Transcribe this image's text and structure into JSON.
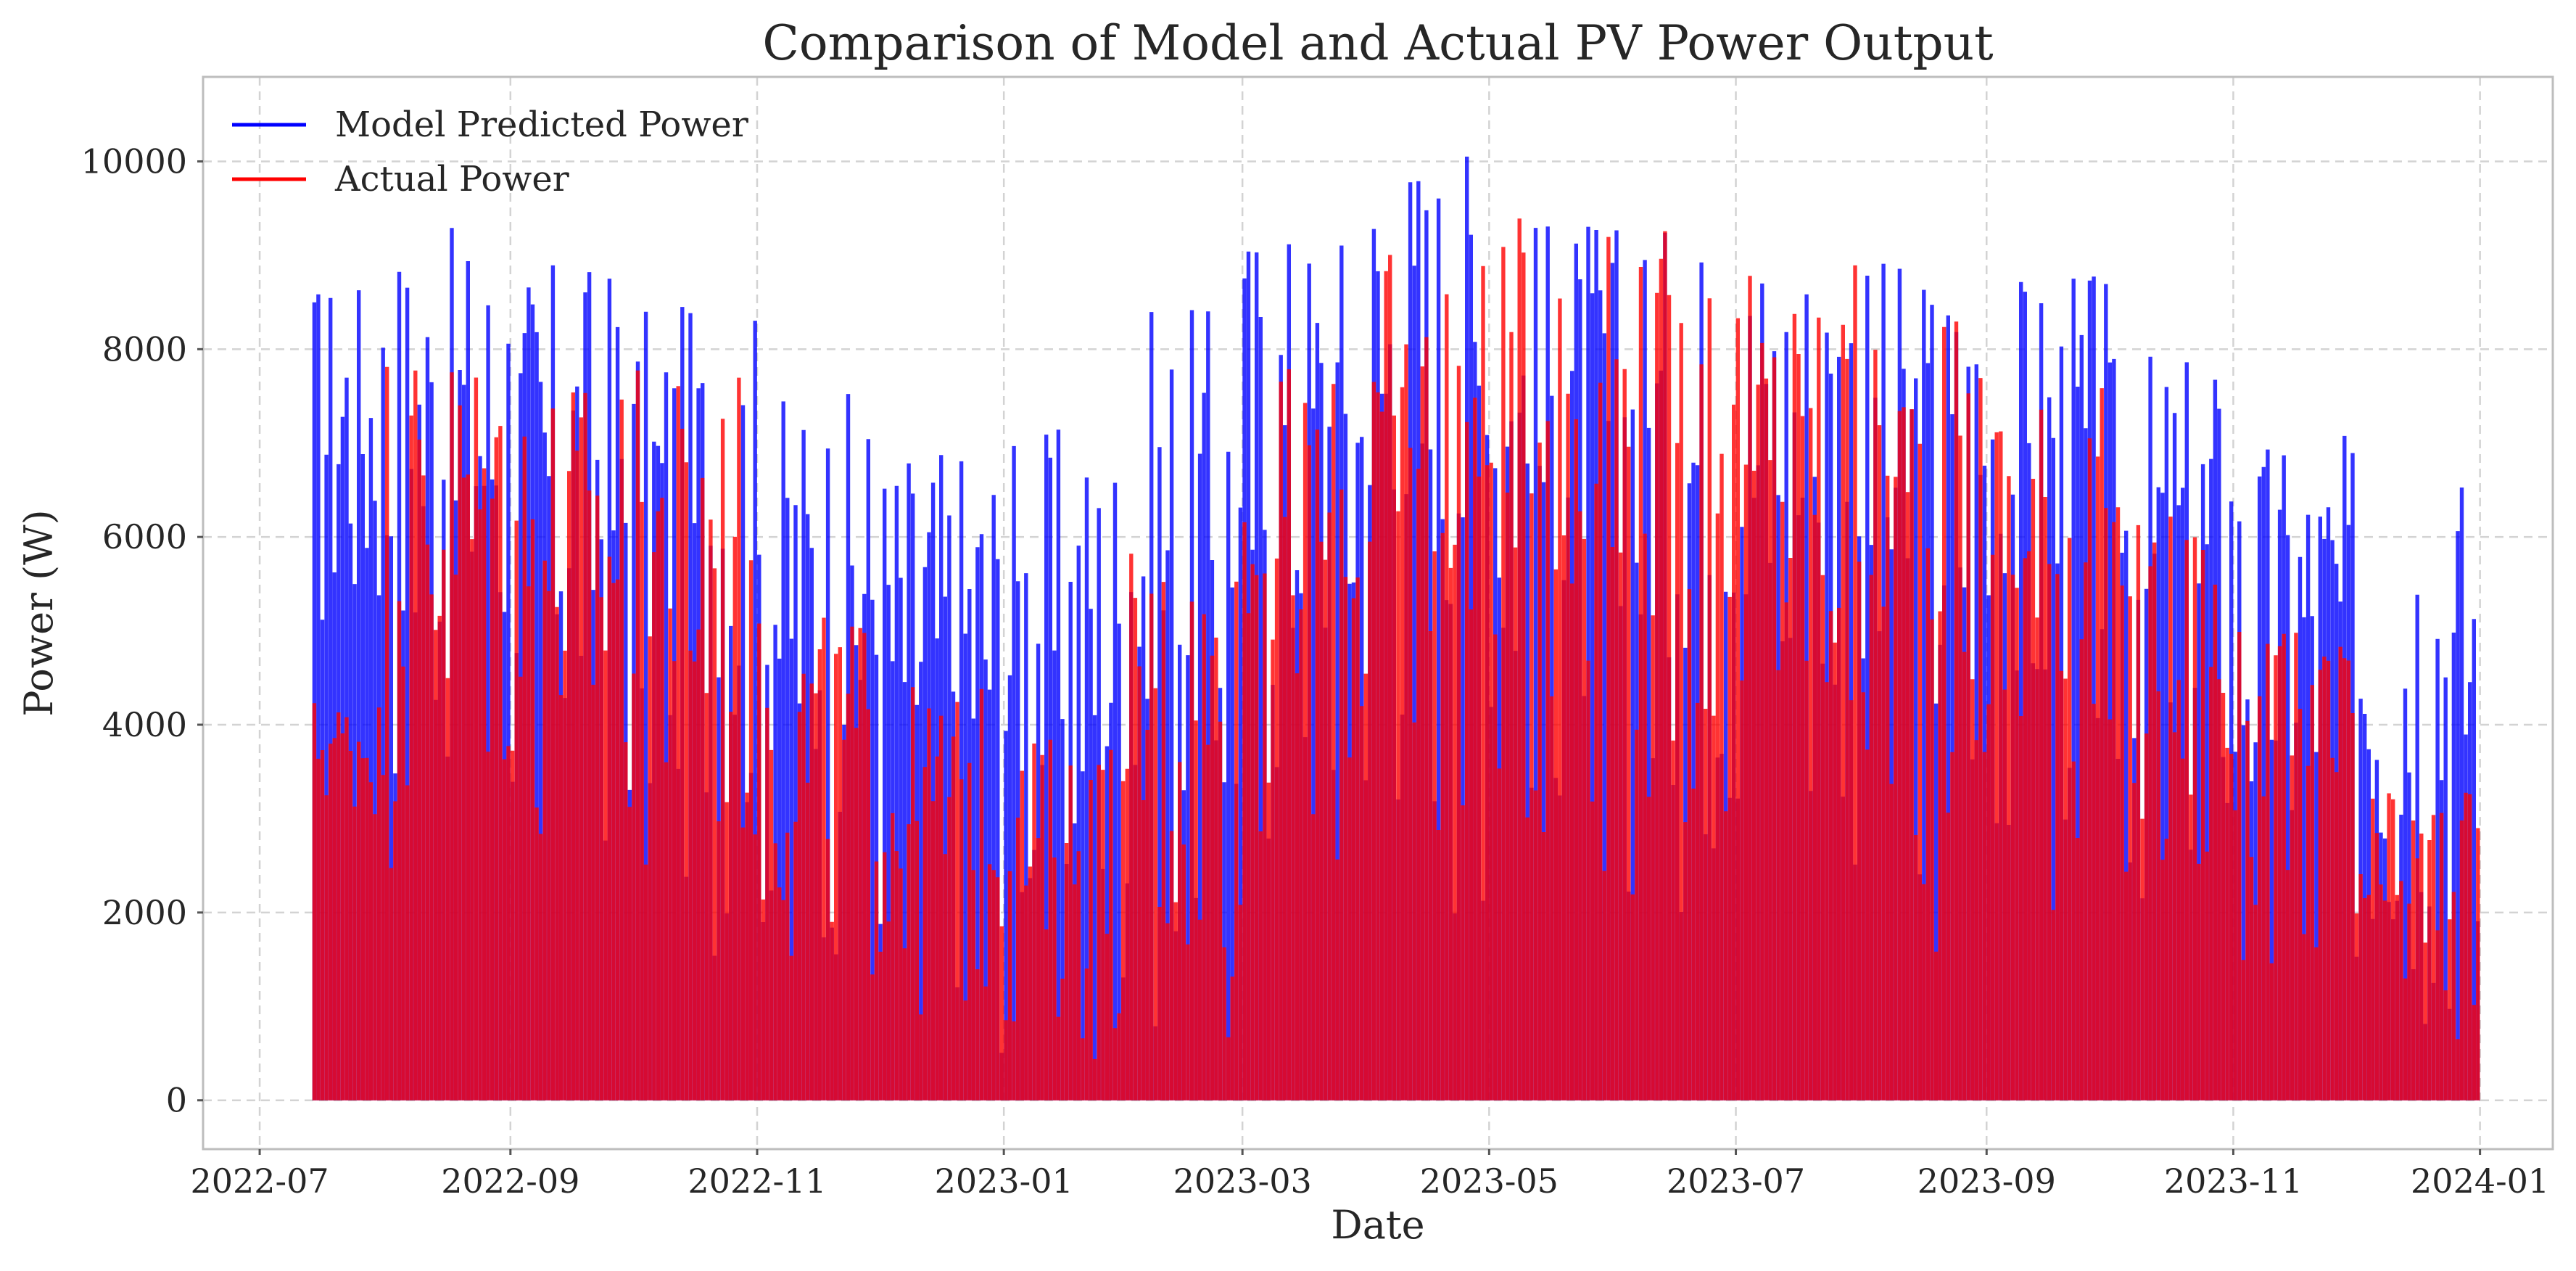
{
  "chart_data": {
    "type": "line",
    "title": "Comparison of Model and Actual PV Power Output",
    "xlabel": "Date",
    "ylabel": "Power (W)",
    "x_ticks": [
      "2022-07",
      "2022-09",
      "2022-11",
      "2023-01",
      "2023-03",
      "2023-05",
      "2023-07",
      "2023-09",
      "2023-11",
      "2024-01"
    ],
    "y_ticks": [
      "0",
      "2000",
      "4000",
      "6000",
      "8000",
      "10000"
    ],
    "xlim": [
      "2022-06-17",
      "2024-01-19"
    ],
    "ylim": [
      -520,
      10900
    ],
    "grid": true,
    "legend_position": "top-left",
    "series": [
      {
        "name": "Model Predicted Power",
        "color": "#0000ff",
        "opacity": 0.8,
        "daily_peak_monthly": [
          {
            "month": "2022-07",
            "low": 4000,
            "high": 8800
          },
          {
            "month": "2022-08",
            "low": 2500,
            "high": 9300
          },
          {
            "month": "2022-09",
            "low": 1500,
            "high": 9000
          },
          {
            "month": "2022-10",
            "low": 1300,
            "high": 8500
          },
          {
            "month": "2022-11",
            "low": 800,
            "high": 7600
          },
          {
            "month": "2022-12",
            "low": 300,
            "high": 7100
          },
          {
            "month": "2023-01",
            "low": 200,
            "high": 7200
          },
          {
            "month": "2023-02",
            "low": 100,
            "high": 8500
          },
          {
            "month": "2023-03",
            "low": 1500,
            "high": 9500
          },
          {
            "month": "2023-04",
            "low": 1800,
            "high": 10400
          },
          {
            "month": "2023-05",
            "low": 2000,
            "high": 9500
          },
          {
            "month": "2023-06",
            "low": 1500,
            "high": 9400
          },
          {
            "month": "2023-07",
            "low": 1700,
            "high": 9400
          },
          {
            "month": "2023-08",
            "low": 1200,
            "high": 9000
          },
          {
            "month": "2023-09",
            "low": 1700,
            "high": 8900
          },
          {
            "month": "2023-10",
            "low": 900,
            "high": 8000
          },
          {
            "month": "2023-11",
            "low": 800,
            "high": 7100
          },
          {
            "month": "2023-12",
            "low": 0,
            "high": 6900
          }
        ]
      },
      {
        "name": "Actual Power",
        "color": "#ff0000",
        "opacity": 0.8,
        "daily_peak_monthly": [
          {
            "month": "2022-07",
            "low": 2800,
            "high": 4300
          },
          {
            "month": "2022-08",
            "low": 2000,
            "high": 8200
          },
          {
            "month": "2022-09",
            "low": 1500,
            "high": 7800
          },
          {
            "month": "2022-10",
            "low": 1300,
            "high": 7800
          },
          {
            "month": "2022-11",
            "low": 800,
            "high": 5200
          },
          {
            "month": "2022-12",
            "low": 300,
            "high": 4400
          },
          {
            "month": "2023-01",
            "low": 200,
            "high": 3900
          },
          {
            "month": "2023-02",
            "low": 100,
            "high": 6000
          },
          {
            "month": "2023-03",
            "low": 1500,
            "high": 7800
          },
          {
            "month": "2023-04",
            "low": 1700,
            "high": 9100
          },
          {
            "month": "2023-05",
            "low": 2000,
            "high": 9400
          },
          {
            "month": "2023-06",
            "low": 1500,
            "high": 9300
          },
          {
            "month": "2023-07",
            "low": 1700,
            "high": 8900
          },
          {
            "month": "2023-08",
            "low": 1200,
            "high": 8400
          },
          {
            "month": "2023-09",
            "low": 1700,
            "high": 7700
          },
          {
            "month": "2023-10",
            "low": 900,
            "high": 6400
          },
          {
            "month": "2023-11",
            "low": 800,
            "high": 5000
          },
          {
            "month": "2023-12",
            "low": 0,
            "high": 3300
          }
        ]
      }
    ]
  }
}
